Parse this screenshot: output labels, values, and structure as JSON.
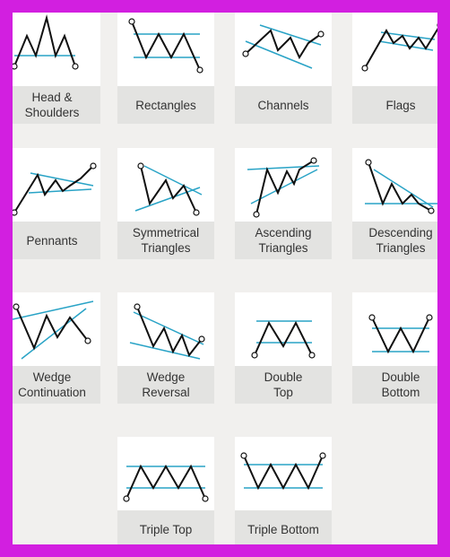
{
  "colors": {
    "frame": "#d21fe0",
    "background": "#f1f0ee",
    "card": "#ffffff",
    "label_bg": "#e3e3e1",
    "line": "#111111",
    "trend": "#29a3c6"
  },
  "patterns": [
    {
      "id": "head-shoulders",
      "label": "Head &\nShoulders"
    },
    {
      "id": "rectangles",
      "label": "Rectangles"
    },
    {
      "id": "channels",
      "label": "Channels"
    },
    {
      "id": "flags",
      "label": "Flags"
    },
    {
      "id": "pennants",
      "label": "Pennants"
    },
    {
      "id": "symmetrical-triangles",
      "label": "Symmetrical\nTriangles"
    },
    {
      "id": "ascending-triangles",
      "label": "Ascending\nTriangles"
    },
    {
      "id": "descending-triangles",
      "label": "Descending\nTriangles"
    },
    {
      "id": "wedge-continuation",
      "label": "Wedge\nContinuation"
    },
    {
      "id": "wedge-reversal",
      "label": "Wedge\nReversal"
    },
    {
      "id": "double-top",
      "label": "Double\nTop"
    },
    {
      "id": "double-bottom",
      "label": "Double\nBottom"
    },
    {
      "id": "triple-top",
      "label": "Triple Top"
    },
    {
      "id": "triple-bottom",
      "label": "Triple Bottom"
    }
  ]
}
